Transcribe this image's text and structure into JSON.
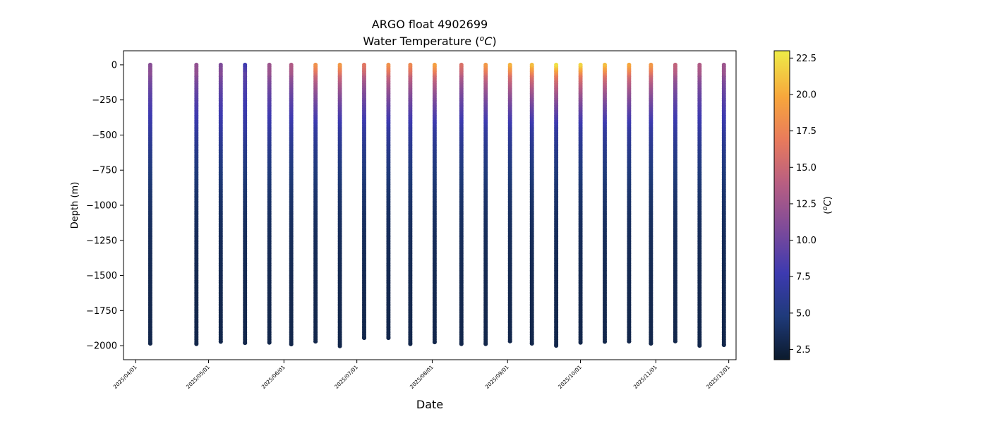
{
  "chart_data": {
    "type": "scatter",
    "title": "ARGO float 4902699",
    "subtitle_prefix": "Water Temperature (",
    "subtitle_unit_sup": "o",
    "subtitle_unit_main": "C",
    "subtitle_suffix": ")",
    "xlabel": "Date",
    "ylabel": "Depth (m)",
    "colorbar_label_prefix": "(",
    "colorbar_label_sup": "o",
    "colorbar_label_main": "C",
    "colorbar_label_suffix": ")",
    "ylim": [
      -2100,
      100
    ],
    "xlim": [
      "2025-03-27",
      "2025-12-04"
    ],
    "color_range": [
      1.8,
      23.0
    ],
    "x_ticks": [
      {
        "date": "2025-04-01",
        "label": "2025/04/01"
      },
      {
        "date": "2025-05-01",
        "label": "2025/05/01"
      },
      {
        "date": "2025-06-01",
        "label": "2025/06/01"
      },
      {
        "date": "2025-07-01",
        "label": "2025/07/01"
      },
      {
        "date": "2025-08-01",
        "label": "2025/08/01"
      },
      {
        "date": "2025-09-01",
        "label": "2025/09/01"
      },
      {
        "date": "2025-10-01",
        "label": "2025/10/01"
      },
      {
        "date": "2025-11-01",
        "label": "2025/11/01"
      },
      {
        "date": "2025-12-01",
        "label": "2025/12/01"
      }
    ],
    "y_ticks": [
      {
        "value": 0,
        "label": "0"
      },
      {
        "value": -250,
        "label": "−250"
      },
      {
        "value": -500,
        "label": "−500"
      },
      {
        "value": -750,
        "label": "−750"
      },
      {
        "value": -1000,
        "label": "−1000"
      },
      {
        "value": -1250,
        "label": "−1250"
      },
      {
        "value": -1500,
        "label": "−1500"
      },
      {
        "value": -1750,
        "label": "−1750"
      },
      {
        "value": -2000,
        "label": "−2000"
      }
    ],
    "colorbar_ticks": [
      {
        "value": 2.5,
        "label": "2.5"
      },
      {
        "value": 5.0,
        "label": "5.0"
      },
      {
        "value": 7.5,
        "label": "7.5"
      },
      {
        "value": 10.0,
        "label": "10.0"
      },
      {
        "value": 12.5,
        "label": "12.5"
      },
      {
        "value": 15.0,
        "label": "15.0"
      },
      {
        "value": 17.5,
        "label": "17.5"
      },
      {
        "value": 20.0,
        "label": "20.0"
      },
      {
        "value": 22.5,
        "label": "22.5"
      }
    ],
    "colormap": [
      "#0b1a2c",
      "#1f3a7a",
      "#3d3ab0",
      "#7c4a9a",
      "#b85e82",
      "#e87a5c",
      "#f7a63c",
      "#eeec47"
    ],
    "profiles": [
      {
        "date": "2025-04-07",
        "surface_temp": 11.5,
        "max_depth": -1985
      },
      {
        "date": "2025-04-26",
        "surface_temp": 12.0,
        "max_depth": -1988
      },
      {
        "date": "2025-05-06",
        "surface_temp": 11.0,
        "max_depth": -1972
      },
      {
        "date": "2025-05-16",
        "surface_temp": 8.0,
        "max_depth": -1980
      },
      {
        "date": "2025-05-26",
        "surface_temp": 12.5,
        "max_depth": -1978
      },
      {
        "date": "2025-06-04",
        "surface_temp": 13.5,
        "max_depth": -1990
      },
      {
        "date": "2025-06-14",
        "surface_temp": 18.5,
        "max_depth": -1970
      },
      {
        "date": "2025-06-24",
        "surface_temp": 19.0,
        "max_depth": -2003
      },
      {
        "date": "2025-07-04",
        "surface_temp": 16.5,
        "max_depth": -1945
      },
      {
        "date": "2025-07-14",
        "surface_temp": 18.5,
        "max_depth": -1945
      },
      {
        "date": "2025-07-23",
        "surface_temp": 18.0,
        "max_depth": -1988
      },
      {
        "date": "2025-08-02",
        "surface_temp": 19.5,
        "max_depth": -1975
      },
      {
        "date": "2025-08-13",
        "surface_temp": 16.0,
        "max_depth": -1988
      },
      {
        "date": "2025-08-23",
        "surface_temp": 19.0,
        "max_depth": -1988
      },
      {
        "date": "2025-09-02",
        "surface_temp": 20.5,
        "max_depth": -1968
      },
      {
        "date": "2025-09-11",
        "surface_temp": 21.0,
        "max_depth": -1985
      },
      {
        "date": "2025-09-21",
        "surface_temp": 22.5,
        "max_depth": -2000
      },
      {
        "date": "2025-10-01",
        "surface_temp": 22.0,
        "max_depth": -1978
      },
      {
        "date": "2025-10-11",
        "surface_temp": 21.0,
        "max_depth": -1972
      },
      {
        "date": "2025-10-21",
        "surface_temp": 20.0,
        "max_depth": -1970
      },
      {
        "date": "2025-10-30",
        "surface_temp": 19.0,
        "max_depth": -1985
      },
      {
        "date": "2025-11-09",
        "surface_temp": 14.5,
        "max_depth": -1968
      },
      {
        "date": "2025-11-19",
        "surface_temp": 13.5,
        "max_depth": -2000
      },
      {
        "date": "2025-11-29",
        "surface_temp": 12.5,
        "max_depth": -1995
      }
    ]
  }
}
